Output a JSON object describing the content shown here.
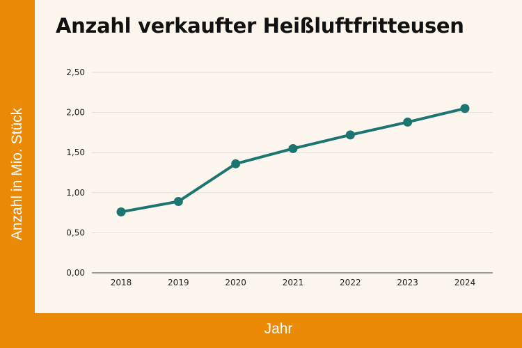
{
  "chart_data": {
    "type": "line",
    "title": "Anzahl verkaufter Heißluftfritteusen",
    "xlabel": "Jahr",
    "ylabel": "Anzahl in Mio. Stück",
    "categories": [
      "2018",
      "2019",
      "2020",
      "2021",
      "2022",
      "2023",
      "2024"
    ],
    "values": [
      0.76,
      0.89,
      1.36,
      1.55,
      1.72,
      1.88,
      2.05
    ],
    "ylim": [
      0,
      2.5
    ],
    "yticks": [
      0,
      0.5,
      1.0,
      1.5,
      2.0,
      2.5
    ],
    "ytick_labels": [
      "0,00",
      "0,50",
      "1,00",
      "1,50",
      "2,00",
      "2,50"
    ],
    "grid": true,
    "line_color": "#1d7572",
    "frame_color": "#ea8a06",
    "background_color": "#fdf6ee"
  }
}
